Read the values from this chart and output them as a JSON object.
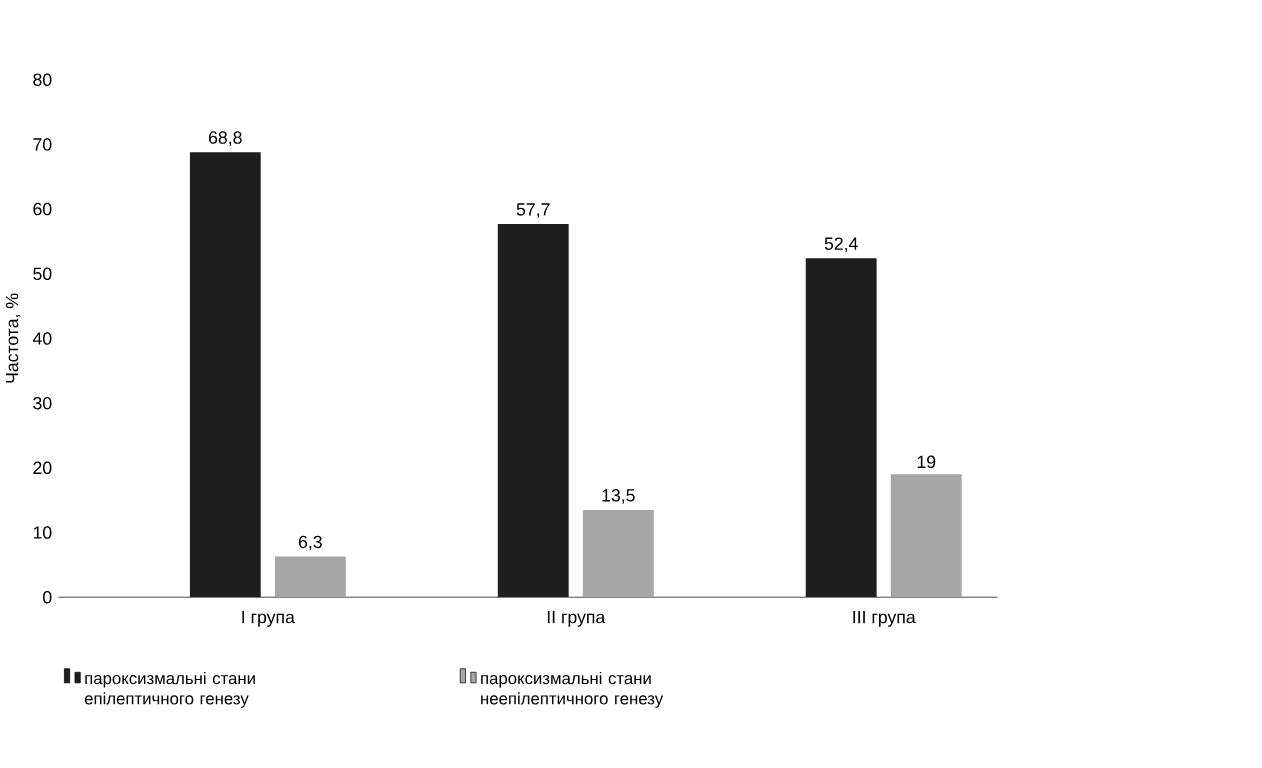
{
  "chart_data": {
    "type": "bar",
    "ylabel": "Частота, %",
    "categories": [
      "I група",
      "II група",
      "III група"
    ],
    "series": [
      {
        "name": "пароксизмальні стани епілептичного генезу",
        "color": "#1e1e1e",
        "values": [
          68.8,
          57.7,
          52.4
        ],
        "value_labels": [
          "68,8",
          "57,7",
          "52,4"
        ]
      },
      {
        "name": "пароксизмальні стани неепілептичного генезу",
        "color": "#a6a6a6",
        "values": [
          6.3,
          13.5,
          19
        ],
        "value_labels": [
          "6,3",
          "13,5",
          "19"
        ]
      }
    ],
    "ylim": [
      0,
      80
    ],
    "yticks": [
      0,
      10,
      20,
      30,
      40,
      50,
      60,
      70,
      80
    ],
    "legend": "bottom"
  }
}
